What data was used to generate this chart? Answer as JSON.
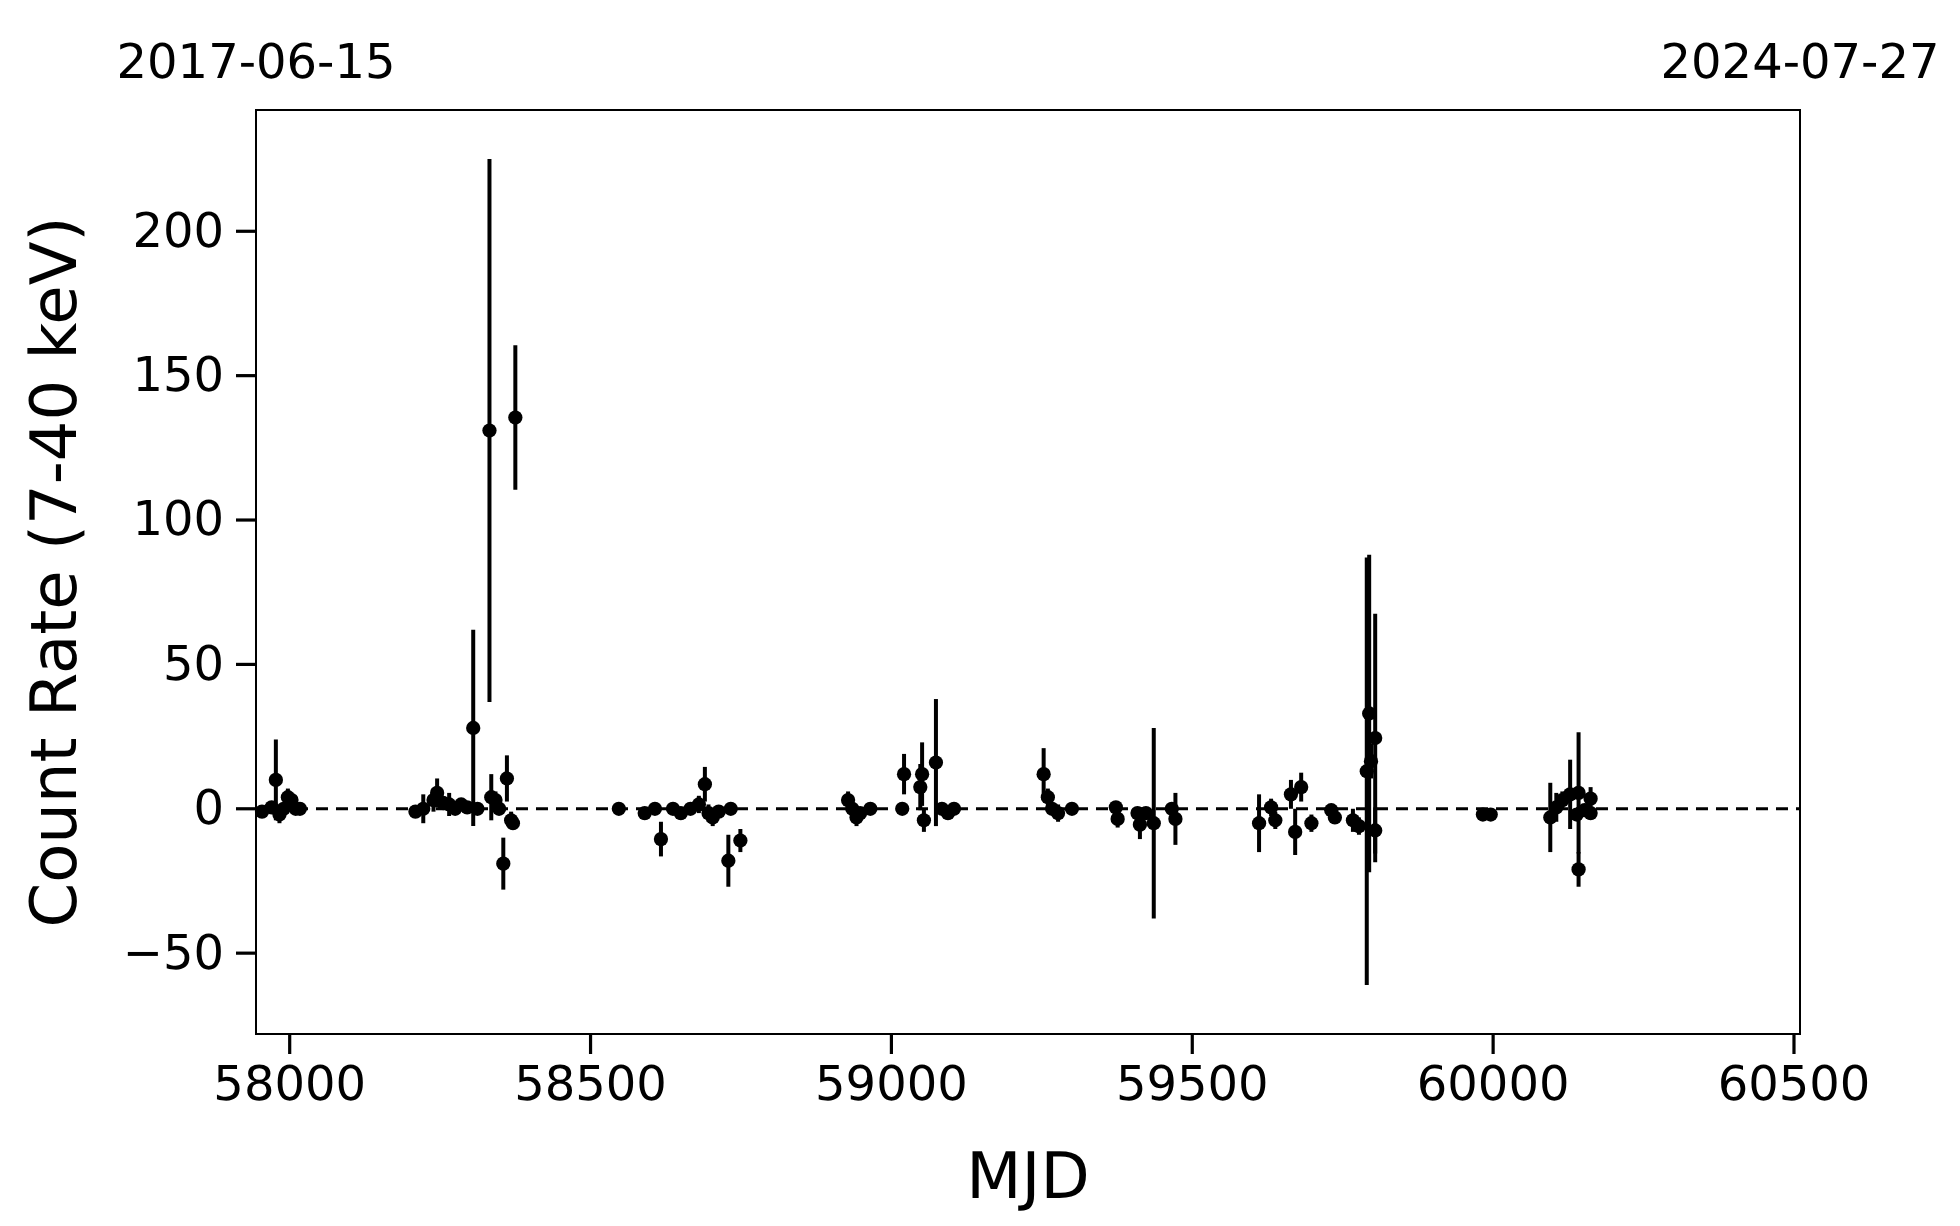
{
  "chart_data": {
    "type": "scatter",
    "xlabel": "MJD",
    "ylabel": "Count Rate (7-40 keV)",
    "marker": "circle",
    "grid": false,
    "xlim": [
      57944,
      60510
    ],
    "xticks": [
      58000,
      58500,
      59000,
      59500,
      60000,
      60500
    ],
    "ylim": [
      -78,
      242
    ],
    "yticks": [
      -50,
      0,
      50,
      100,
      150,
      200
    ],
    "x2lim": [
      "2017-06-15",
      "2024-07-27"
    ],
    "x2ticks": [
      "2017-06-15",
      "2024-07-27"
    ],
    "ref_lines": [
      {
        "axis": "y",
        "value": 0,
        "color": "#000000",
        "line_style": "dashed"
      }
    ],
    "series": [
      {
        "color": "#000000",
        "x": [
          57954,
          57970,
          57977,
          57983,
          57990,
          57997,
          58003,
          58010,
          58017,
          58209,
          58222,
          58239,
          58245,
          58255,
          58265,
          58275,
          58285,
          58295,
          58305,
          58312,
          58332,
          58335,
          58342,
          58348,
          58355,
          58361,
          58368,
          58371,
          58375,
          58547,
          58590,
          58607,
          58617,
          58637,
          58650,
          58666,
          58680,
          58690,
          58696,
          58703,
          58713,
          58729,
          58733,
          58749,
          58928,
          58935,
          58942,
          58948,
          58965,
          59018,
          59021,
          59048,
          59051,
          59054,
          59074,
          59084,
          59094,
          59104,
          59253,
          59260,
          59267,
          59277,
          59300,
          59373,
          59376,
          59409,
          59413,
          59423,
          59436,
          59466,
          59472,
          59611,
          59631,
          59638,
          59664,
          59671,
          59681,
          59698,
          59731,
          59737,
          59767,
          59777,
          59790,
          59794,
          59797,
          59804,
          59804,
          59983,
          59996,
          60095,
          60105,
          60115,
          60128,
          60139,
          60142,
          60142,
          60152,
          60162,
          60162
        ],
        "values": [
          -1,
          0.5,
          10,
          -2,
          0,
          4,
          3,
          0,
          0,
          -1,
          0,
          3,
          5.5,
          2,
          1.5,
          0,
          1.5,
          0.5,
          28,
          0,
          131,
          4,
          3,
          0,
          -19,
          10.5,
          -4,
          -5,
          135.5,
          0,
          -1.5,
          0,
          -10.5,
          0,
          -1.5,
          0,
          1.5,
          8.5,
          -1.5,
          -3,
          -1,
          -18,
          0,
          -11,
          3,
          0,
          -3,
          -1.5,
          0,
          0,
          12,
          7.5,
          12,
          -4,
          16,
          0,
          -1.5,
          0,
          12,
          4,
          0,
          -1.5,
          0,
          0.5,
          -3.5,
          -1.5,
          -5.5,
          -1.5,
          -5,
          0,
          -3.5,
          -5,
          0.5,
          -4,
          5,
          -8,
          7.5,
          -5,
          -0.5,
          -3,
          -4,
          -6,
          13,
          33,
          16.5,
          24.5,
          -7.5,
          -2,
          -2,
          -3,
          0.5,
          3,
          5,
          -2,
          5.5,
          -21,
          -0.5,
          3.5,
          -1.5
        ],
        "errors": [
          2,
          2,
          14,
          3,
          2,
          3,
          2,
          2,
          2,
          2,
          5,
          4,
          5,
          2,
          4,
          2,
          2,
          2,
          34,
          2,
          94,
          8,
          3,
          2,
          9,
          8,
          3,
          2,
          25,
          1,
          2,
          1,
          6,
          1,
          2,
          2,
          3,
          6,
          3,
          3,
          2,
          9,
          2,
          4,
          3,
          2,
          3,
          2,
          1,
          2,
          7,
          8,
          11,
          4,
          22,
          2,
          2,
          2,
          9,
          3,
          2,
          3,
          2,
          2,
          3,
          2,
          5,
          2,
          33,
          2,
          9,
          10,
          3,
          3,
          5,
          8,
          5,
          3,
          2,
          2,
          4,
          3,
          74,
          55,
          6,
          43,
          8,
          1,
          1,
          12,
          5,
          3,
          12,
          2,
          21,
          6,
          2,
          4,
          2
        ]
      }
    ]
  }
}
